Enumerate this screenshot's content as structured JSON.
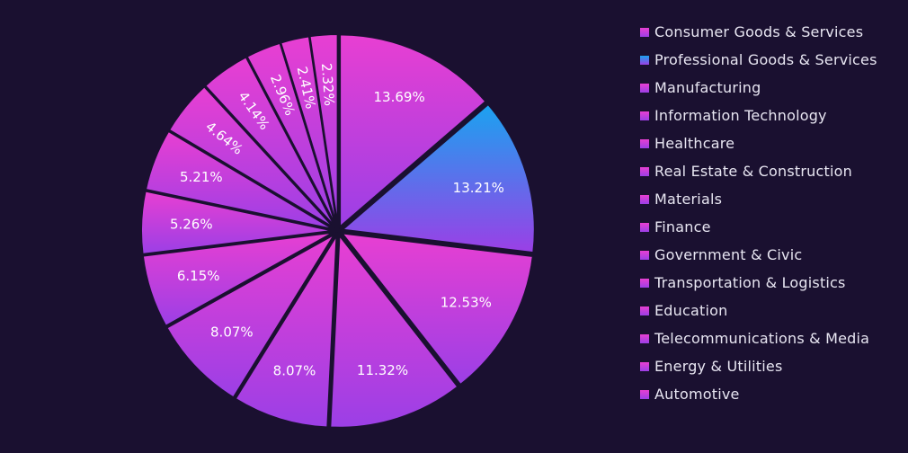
{
  "chart_data": {
    "type": "pie",
    "title": "",
    "legend_position": "right",
    "categories": [
      "Consumer Goods & Services",
      "Professional Goods & Services",
      "Manufacturing",
      "Information Technology",
      "Healthcare",
      "Real Estate & Construction",
      "Materials",
      "Finance",
      "Government & Civic",
      "Transportation & Logistics",
      "Education",
      "Telecommunications & Media",
      "Energy & Utilities",
      "Automotive"
    ],
    "values": [
      13.69,
      13.21,
      12.53,
      11.32,
      8.07,
      8.07,
      6.15,
      5.26,
      5.21,
      4.64,
      4.14,
      2.96,
      2.41,
      2.32
    ],
    "labels": [
      "13.69%",
      "13.21%",
      "12.53%",
      "11.32%",
      "8.07%",
      "8.07%",
      "6.15%",
      "5.26%",
      "5.21%",
      "4.64%",
      "4.14%",
      "2.96%",
      "2.41%",
      "2.32%"
    ],
    "colors": {
      "background": "#1a1030",
      "gradient_pink": "#e83fd2",
      "gradient_purple": "#9b3fe6",
      "gradient_blue": "#1aa3f0"
    },
    "slice_gradient": [
      "pink",
      "blue",
      "pink",
      "pink",
      "pink",
      "pink",
      "pink",
      "pink",
      "pink",
      "pink",
      "pink",
      "pink",
      "pink",
      "pink"
    ]
  }
}
